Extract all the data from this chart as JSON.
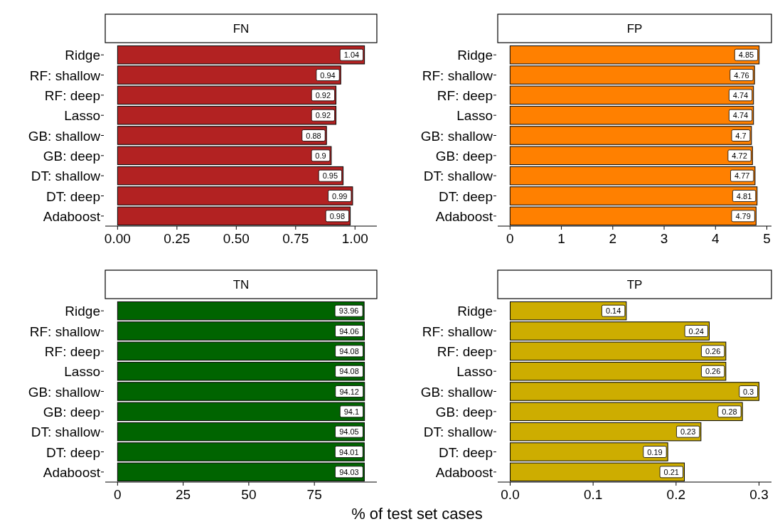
{
  "chart_data": [
    {
      "type": "bar",
      "orientation": "horizontal",
      "title": "FN",
      "categories": [
        "Ridge",
        "RF: shallow",
        "RF: deep",
        "Lasso",
        "GB: shallow",
        "GB: deep",
        "DT: shallow",
        "DT: deep",
        "Adaboost"
      ],
      "values": [
        1.04,
        0.94,
        0.92,
        0.92,
        0.88,
        0.9,
        0.95,
        0.99,
        0.98
      ],
      "color": "#b22222",
      "xlim": [
        -0.052,
        1.092
      ],
      "xticks": [
        {
          "value": 0,
          "label": "0.00"
        },
        {
          "value": 0.25,
          "label": "0.25"
        },
        {
          "value": 0.5,
          "label": "0.50"
        },
        {
          "value": 0.75,
          "label": "0.75"
        },
        {
          "value": 1,
          "label": "1.00"
        }
      ],
      "data_labels": true
    },
    {
      "type": "bar",
      "orientation": "horizontal",
      "title": "FP",
      "categories": [
        "Ridge",
        "RF: shallow",
        "RF: deep",
        "Lasso",
        "GB: shallow",
        "GB: deep",
        "DT: shallow",
        "DT: deep",
        "Adaboost"
      ],
      "values": [
        4.85,
        4.76,
        4.74,
        4.74,
        4.7,
        4.72,
        4.77,
        4.81,
        4.79
      ],
      "color": "#ff8000",
      "xlim": [
        -0.24,
        5.09
      ],
      "xticks": [
        0,
        1,
        2,
        3,
        4,
        5
      ],
      "data_labels": true
    },
    {
      "type": "bar",
      "orientation": "horizontal",
      "title": "TN",
      "xlabel": "% of test set cases",
      "categories": [
        "Ridge",
        "RF: shallow",
        "RF: deep",
        "Lasso",
        "GB: shallow",
        "GB: deep",
        "DT: shallow",
        "DT: deep",
        "Adaboost"
      ],
      "values": [
        93.96,
        94.06,
        94.08,
        94.08,
        94.12,
        94.1,
        94.05,
        94.01,
        94.03
      ],
      "color": "#006400",
      "xlim": [
        -4.7,
        98.8
      ],
      "xticks": [
        0,
        25,
        50,
        75
      ],
      "data_labels": true
    },
    {
      "type": "bar",
      "orientation": "horizontal",
      "title": "TP",
      "categories": [
        "Ridge",
        "RF: shallow",
        "RF: deep",
        "Lasso",
        "GB: shallow",
        "GB: deep",
        "DT: shallow",
        "DT: deep",
        "Adaboost"
      ],
      "values": [
        0.14,
        0.24,
        0.26,
        0.26,
        0.3,
        0.28,
        0.23,
        0.19,
        0.21
      ],
      "color": "#cdad00",
      "xlim": [
        -0.015,
        0.315
      ],
      "xticks": [
        {
          "value": 0,
          "label": "0.0"
        },
        {
          "value": 0.1,
          "label": "0.1"
        },
        {
          "value": 0.2,
          "label": "0.2"
        },
        {
          "value": 0.3,
          "label": "0.3"
        }
      ],
      "data_labels": true
    }
  ]
}
